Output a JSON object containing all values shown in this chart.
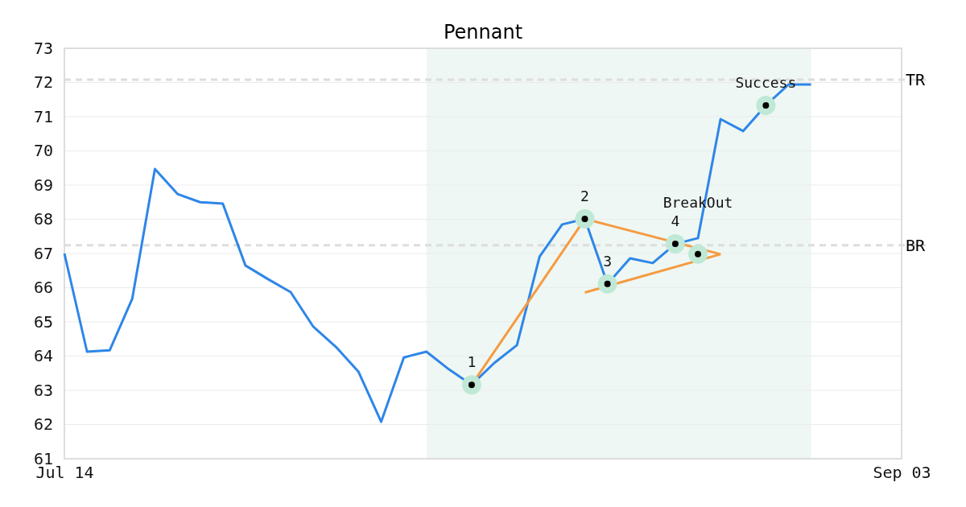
{
  "chart_data": {
    "type": "line",
    "title": "Pennant",
    "categories": [
      "Jul 14",
      null,
      null,
      null,
      null,
      null,
      null,
      null,
      null,
      null,
      null,
      null,
      null,
      null,
      null,
      null,
      null,
      null,
      null,
      null,
      null,
      null,
      null,
      null,
      null,
      null,
      null,
      null,
      null,
      null,
      null,
      null,
      null,
      null,
      null,
      null,
      null,
      "Sep 03"
    ],
    "ylim": [
      61,
      73
    ],
    "yticks": [
      61,
      62,
      63,
      64,
      65,
      66,
      67,
      68,
      69,
      70,
      71,
      72,
      73
    ],
    "grid": "y",
    "marker": "none",
    "line_style": "solid",
    "series": [
      {
        "color": "#2e86e8",
        "values": [
          67.0,
          64.13,
          64.17,
          65.68,
          69.47,
          68.74,
          68.5,
          68.46,
          66.65,
          66.25,
          65.87,
          64.86,
          64.27,
          63.54,
          62.08,
          63.96,
          64.13,
          63.61,
          63.16,
          63.8,
          64.32,
          66.91,
          67.85,
          68.01,
          66.11,
          66.86,
          66.72,
          67.28,
          67.45,
          70.93,
          70.58,
          71.33,
          71.94,
          71.94,
          null,
          null,
          null,
          null
        ]
      },
      {
        "color": "#f59b42",
        "values": [
          null,
          null,
          null,
          null,
          null,
          null,
          null,
          null,
          null,
          null,
          null,
          null,
          null,
          null,
          null,
          null,
          null,
          null,
          63.16,
          null,
          null,
          null,
          null,
          68.01,
          null,
          null,
          null,
          null,
          null,
          66.98,
          null,
          null,
          null,
          null,
          null,
          null,
          null,
          null
        ]
      },
      {
        "color": "#f59b42",
        "values": [
          null,
          null,
          null,
          null,
          null,
          null,
          null,
          null,
          null,
          null,
          null,
          null,
          null,
          null,
          null,
          null,
          null,
          null,
          null,
          null,
          null,
          null,
          null,
          65.86,
          null,
          null,
          null,
          null,
          null,
          66.98,
          null,
          null,
          null,
          null,
          null,
          null,
          null,
          null
        ]
      },
      {
        "type": "scatter",
        "color": "#000000",
        "marker": "circle",
        "values": [
          null,
          null,
          null,
          null,
          null,
          null,
          null,
          null,
          null,
          null,
          null,
          null,
          null,
          null,
          null,
          null,
          null,
          null,
          63.16,
          null,
          null,
          null,
          null,
          68.01,
          66.11,
          null,
          null,
          67.28,
          66.98,
          null,
          null,
          71.33,
          null,
          null,
          null,
          null,
          null,
          null
        ]
      }
    ],
    "ref_lines": [
      {
        "axis": "y",
        "value": 72.08,
        "label": "TR",
        "color": "#dddddd",
        "line_style": "dashed"
      },
      {
        "axis": "y",
        "value": 67.24,
        "label": "BR",
        "color": "#dddddd",
        "line_style": "dashed"
      }
    ],
    "annotations": [
      "1",
      "2",
      "3",
      "4",
      "BreakOut",
      "Success"
    ]
  }
}
